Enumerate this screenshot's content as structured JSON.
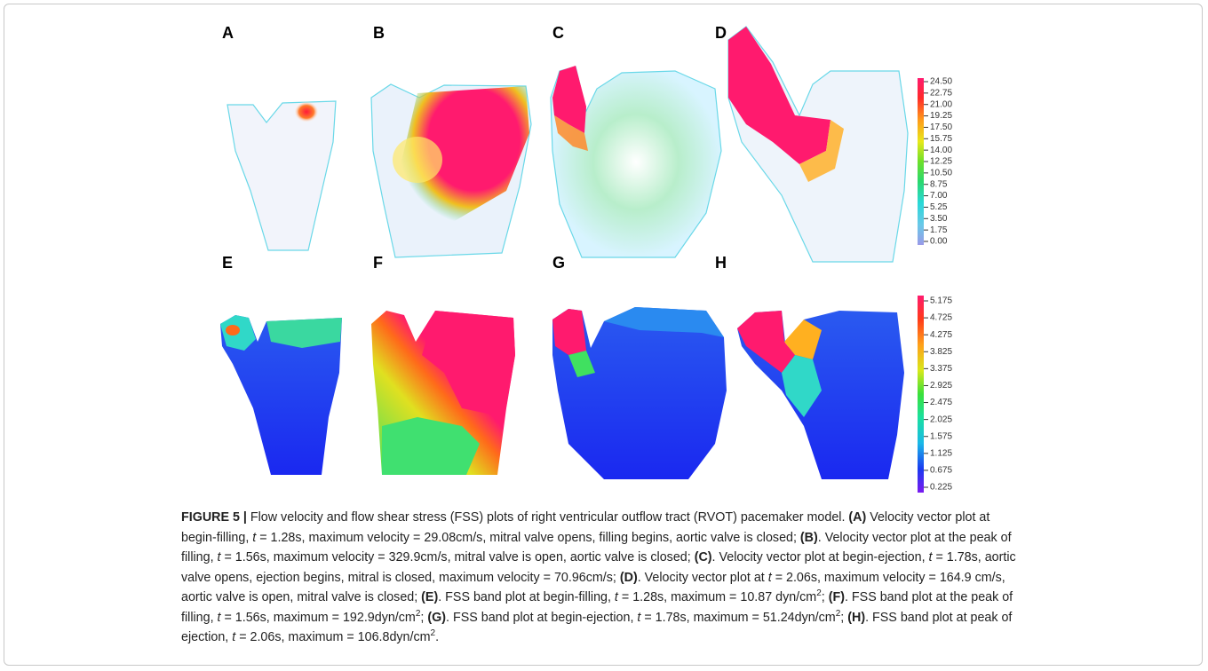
{
  "panels": [
    "A",
    "B",
    "C",
    "D",
    "E",
    "F",
    "G",
    "H"
  ],
  "colorbars": [
    {
      "labels": [
        "24.50",
        "22.75",
        "21.00",
        "19.25",
        "17.50",
        "15.75",
        "14.00",
        "12.25",
        "10.50",
        "8.75",
        "7.00",
        "5.25",
        "3.50",
        "1.75",
        "0.00"
      ]
    },
    {
      "labels": [
        "5.175",
        "4.725",
        "4.275",
        "3.825",
        "3.375",
        "2.925",
        "2.475",
        "2.025",
        "1.575",
        "1.125",
        "0.675",
        "0.225"
      ]
    }
  ],
  "caption": {
    "runs": [
      "FIGURE 5 |",
      " Flow velocity and flow shear stress (FSS) plots of right ventricular outflow tract (RVOT) pacemaker model. ",
      "(A)",
      " Velocity vector plot at begin-filling, ",
      "t",
      " = 1.28s, maximum velocity = 29.08cm/s, mitral valve opens, filling begins, aortic valve is closed; ",
      "(B)",
      ". Velocity vector plot at the peak of filling, ",
      "t",
      " = 1.56s, maximum velocity = 329.9cm/s, mitral valve is open, aortic valve is closed; ",
      "(C)",
      ". Velocity vector plot at begin-ejection, ",
      "t",
      " = 1.78s, aortic valve opens, ejection begins, mitral is closed, maximum velocity = 70.96cm/s; ",
      "(D)",
      ". Velocity vector plot at ",
      "t",
      " = 2.06s, maximum velocity = 164.9 cm/s, aortic valve is open, mitral valve is closed; ",
      "(E)",
      ". FSS band plot at begin-filling, ",
      "t",
      " = 1.28s, maximum = 10.87 dyn/cm",
      "2",
      "; ",
      "(F)",
      ". FSS band plot at the peak of filling, ",
      "t",
      " = 1.56s, maximum =  192.9dyn/cm",
      "2",
      "; ",
      "(G)",
      ". FSS band plot at begin-ejection, ",
      "t",
      " = 1.78s, maximum =  51.24dyn/cm",
      "2",
      "; ",
      "(H)",
      ". FSS band plot at peak of ejection, ",
      "t",
      " = 2.06s, maximum = 106.8dyn/cm",
      "2",
      "."
    ]
  }
}
